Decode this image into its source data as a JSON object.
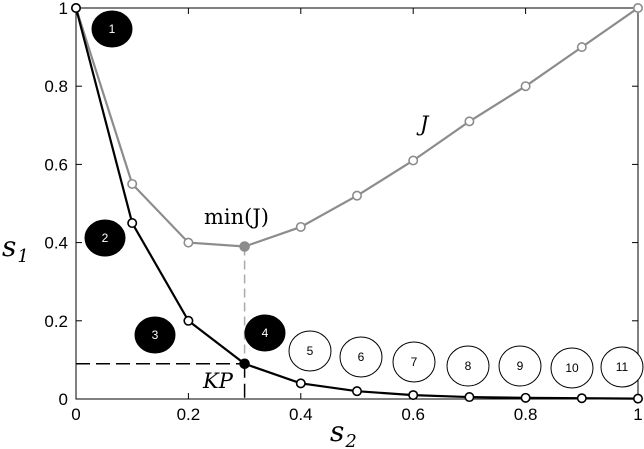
{
  "chart_data": {
    "type": "line",
    "x_axis": {
      "symbol": "s",
      "subscript": "2",
      "ticks": [
        "0",
        "0.2",
        "0.4",
        "0.6",
        "0.8",
        "1"
      ],
      "tick_values": [
        0,
        0.2,
        0.4,
        0.6,
        0.8,
        1
      ],
      "range": [
        0,
        1
      ]
    },
    "y_axis": {
      "symbol": "s",
      "subscript": "1",
      "ticks": [
        "0",
        "0.2",
        "0.4",
        "0.6",
        "0.8",
        "1"
      ],
      "tick_values": [
        0,
        0.2,
        0.4,
        0.6,
        0.8,
        1
      ],
      "range": [
        0,
        1
      ]
    },
    "series": [
      {
        "name": "J",
        "color": "#8c8c8c",
        "x": [
          0,
          0.1,
          0.2,
          0.3,
          0.4,
          0.5,
          0.6,
          0.7,
          0.8,
          0.9,
          1.0
        ],
        "y": [
          1.0,
          0.55,
          0.4,
          0.39,
          0.44,
          0.52,
          0.61,
          0.71,
          0.8,
          0.9,
          1.0
        ],
        "highlight_index": 3
      },
      {
        "color": "#000000",
        "x": [
          0,
          0.1,
          0.2,
          0.3,
          0.4,
          0.5,
          0.6,
          0.7,
          0.8,
          0.9,
          1.0
        ],
        "y": [
          1.0,
          0.45,
          0.2,
          0.09,
          0.04,
          0.02,
          0.01,
          0.005,
          0.003,
          0.002,
          0.001
        ],
        "highlight_index": 3
      }
    ],
    "annotations": {
      "series_label": "J",
      "min_label": "min(J)",
      "knee_label": "KP",
      "knee_point": {
        "x": 0.3,
        "y": 0.09
      },
      "min_point": {
        "x": 0.3,
        "y": 0.39
      }
    },
    "badges": [
      {
        "label": "1",
        "filled": true
      },
      {
        "label": "2",
        "filled": true
      },
      {
        "label": "3",
        "filled": true
      },
      {
        "label": "4",
        "filled": true
      },
      {
        "label": "5",
        "filled": false
      },
      {
        "label": "6",
        "filled": false
      },
      {
        "label": "7",
        "filled": false
      },
      {
        "label": "8",
        "filled": false
      },
      {
        "label": "9",
        "filled": false
      },
      {
        "label": "10",
        "filled": false
      },
      {
        "label": "11",
        "filled": false
      }
    ],
    "grid": false,
    "legend": "none"
  }
}
